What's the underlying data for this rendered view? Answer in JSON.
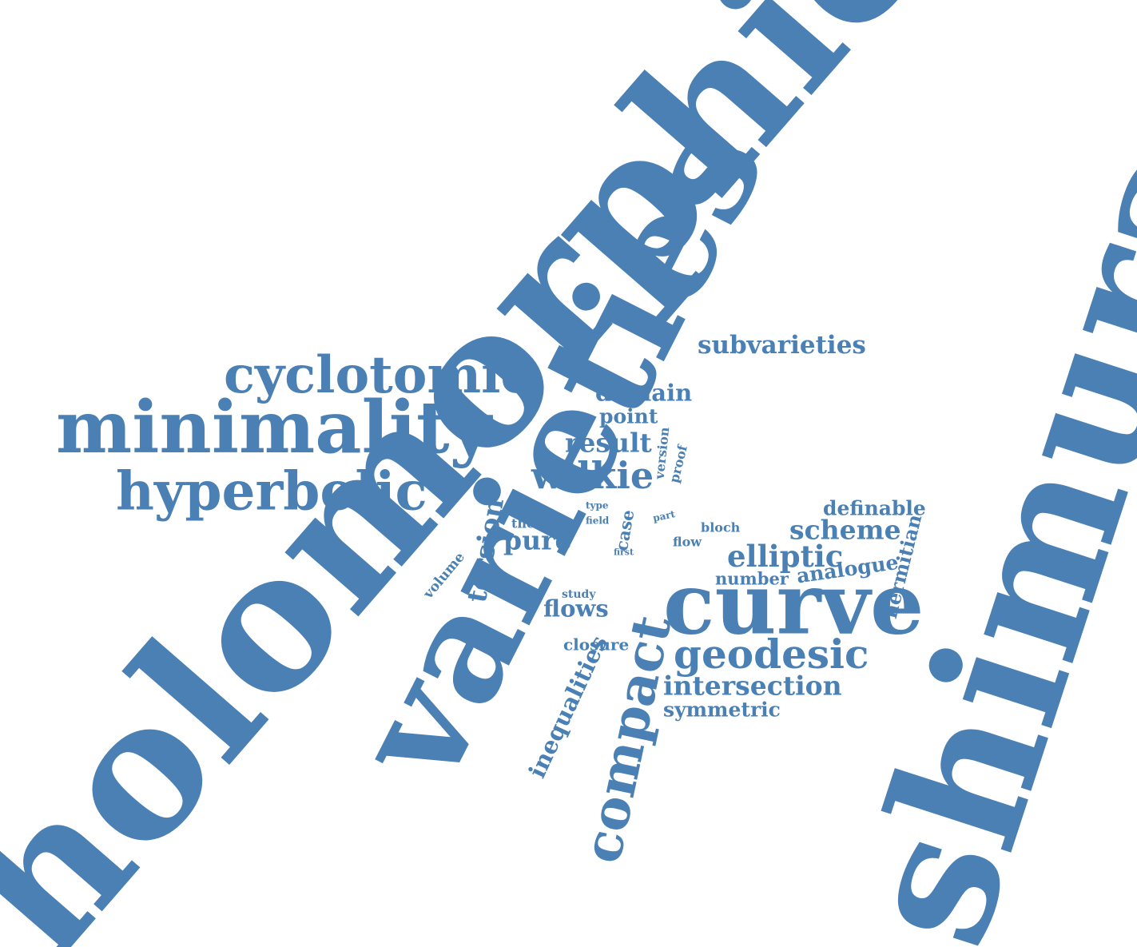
{
  "colors": {
    "word": "#4a80b4",
    "background": "#ffffff"
  },
  "words": {
    "holomorphic": "holomorphic",
    "shimura": "shimura",
    "varieties": "varieties",
    "curve": "curve",
    "minimality": "minimality",
    "cyclotomic": "cyclotomic",
    "hyperbolic": "hyperbolic",
    "compact": "compact",
    "geodesic": "geodesic",
    "subvarieties": "subvarieties",
    "domain": "domain",
    "point": "point",
    "result": "result",
    "wilkie": "wilkie",
    "version": "version",
    "proof": "proof",
    "torsion": "torsion",
    "type": "type",
    "field": "field",
    "thesis": "thesis",
    "pure": "pure",
    "case": "case",
    "part": "part",
    "bloch": "bloch",
    "flow": "flow",
    "first": "first",
    "definable": "definable",
    "scheme": "scheme",
    "hermitian": "hermitian",
    "elliptic": "elliptic",
    "number": "number",
    "analogue": "analogue",
    "volume": "volume",
    "study": "study",
    "flows": "flows",
    "closure": "closure",
    "inequalities": "inequalities",
    "intersection": "intersection",
    "symmetric": "symmetric"
  }
}
